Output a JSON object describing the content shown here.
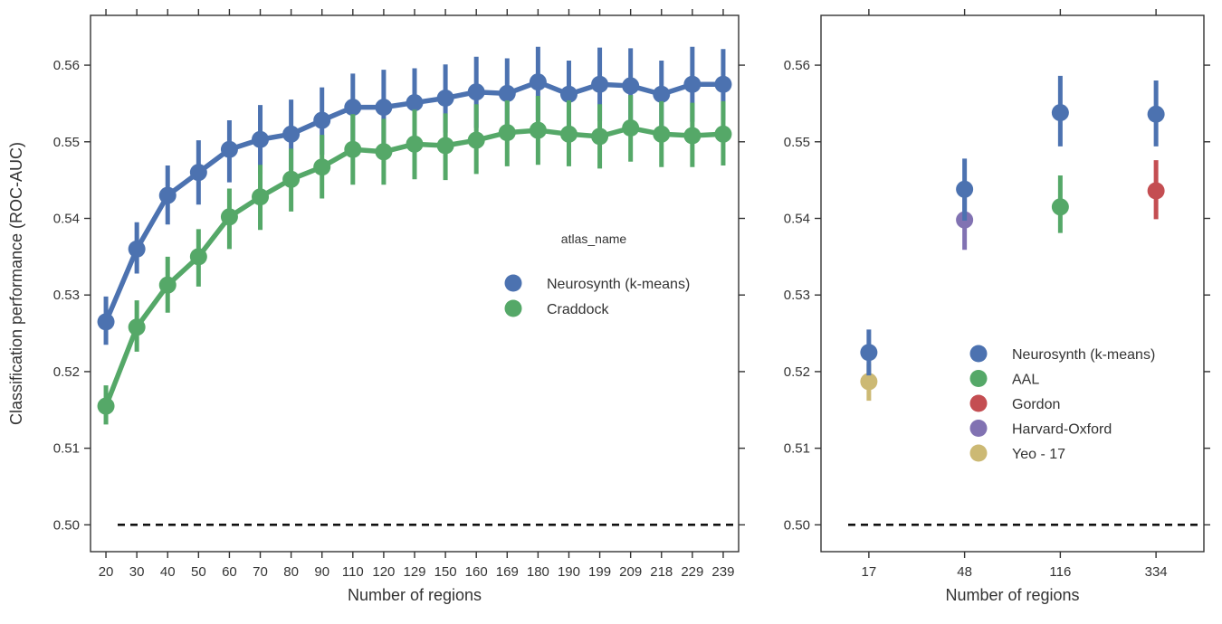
{
  "chart_data": [
    {
      "type": "line",
      "xlabel": "Number of regions",
      "ylabel": "Classification performance (ROC-AUC)",
      "ylim": [
        0.4965,
        0.5665
      ],
      "yticks": [
        "0.50",
        "0.51",
        "0.52",
        "0.53",
        "0.54",
        "0.55",
        "0.56"
      ],
      "categories": [
        "20",
        "30",
        "40",
        "50",
        "60",
        "70",
        "80",
        "90",
        "110",
        "120",
        "129",
        "150",
        "160",
        "169",
        "180",
        "190",
        "199",
        "209",
        "218",
        "229",
        "239"
      ],
      "baseline": 0.5,
      "grid": false,
      "legend": {
        "title": "atlas_name",
        "placement": "center-right"
      },
      "series": [
        {
          "name": "Neurosynth (k-means)",
          "color": "#4c72b0",
          "values": [
            0.5265,
            0.536,
            0.543,
            0.546,
            0.549,
            0.5503,
            0.551,
            0.5528,
            0.5545,
            0.5545,
            0.5551,
            0.5557,
            0.5565,
            0.5563,
            0.5578,
            0.5562,
            0.5575,
            0.5573,
            0.5562,
            0.5575,
            0.5575
          ],
          "ci_low": [
            0.5235,
            0.5328,
            0.5392,
            0.5418,
            0.5447,
            0.5458,
            0.5463,
            0.5483,
            0.5501,
            0.5496,
            0.5506,
            0.5512,
            0.5518,
            0.5516,
            0.5528,
            0.5515,
            0.5527,
            0.5524,
            0.5516,
            0.5526,
            0.5528
          ],
          "ci_high": [
            0.5298,
            0.5395,
            0.5469,
            0.5502,
            0.5528,
            0.5548,
            0.5555,
            0.5571,
            0.5589,
            0.5594,
            0.5596,
            0.5601,
            0.5611,
            0.5609,
            0.5624,
            0.5606,
            0.5623,
            0.5622,
            0.5606,
            0.5624,
            0.5621
          ]
        },
        {
          "name": "Craddock",
          "color": "#55a868",
          "values": [
            0.5155,
            0.5258,
            0.5313,
            0.535,
            0.5402,
            0.5428,
            0.5451,
            0.5467,
            0.549,
            0.5487,
            0.5497,
            0.5495,
            0.5502,
            0.5512,
            0.5515,
            0.551,
            0.5507,
            0.5518,
            0.551,
            0.5508,
            0.551
          ],
          "ci_low": [
            0.5131,
            0.5226,
            0.5277,
            0.5311,
            0.536,
            0.5385,
            0.5409,
            0.5426,
            0.5444,
            0.5444,
            0.5451,
            0.545,
            0.5458,
            0.5468,
            0.547,
            0.5468,
            0.5465,
            0.5474,
            0.5467,
            0.5467,
            0.5469
          ],
          "ci_high": [
            0.5182,
            0.5293,
            0.535,
            0.5386,
            0.5439,
            0.547,
            0.5491,
            0.5509,
            0.5536,
            0.553,
            0.5542,
            0.5537,
            0.5549,
            0.5554,
            0.556,
            0.5554,
            0.5549,
            0.5561,
            0.5553,
            0.5551,
            0.5553
          ]
        }
      ]
    },
    {
      "type": "scatter",
      "xlabel": "Number of regions",
      "ylabel": "",
      "ylim": [
        0.4965,
        0.5665
      ],
      "yticks": [
        "0.50",
        "0.51",
        "0.52",
        "0.53",
        "0.54",
        "0.55",
        "0.56"
      ],
      "categories": [
        "17",
        "48",
        "116",
        "334"
      ],
      "baseline": 0.5,
      "grid": false,
      "legend": {
        "placement": "lower-right"
      },
      "series": [
        {
          "name": "Neurosynth (k-means)",
          "color": "#4c72b0",
          "points": [
            {
              "x": "17",
              "y": 0.5225,
              "lo": 0.5195,
              "hi": 0.5255
            },
            {
              "x": "48",
              "y": 0.5438,
              "lo": 0.5397,
              "hi": 0.5478
            },
            {
              "x": "116",
              "y": 0.5538,
              "lo": 0.5494,
              "hi": 0.5586
            },
            {
              "x": "334",
              "y": 0.5536,
              "lo": 0.5494,
              "hi": 0.558
            }
          ]
        },
        {
          "name": "AAL",
          "color": "#55a868",
          "points": [
            {
              "x": "116",
              "y": 0.5415,
              "lo": 0.5381,
              "hi": 0.5456
            }
          ]
        },
        {
          "name": "Gordon",
          "color": "#c44e52",
          "points": [
            {
              "x": "334",
              "y": 0.5436,
              "lo": 0.5399,
              "hi": 0.5476
            }
          ]
        },
        {
          "name": "Harvard-Oxford",
          "color": "#8172b2",
          "points": [
            {
              "x": "48",
              "y": 0.5398,
              "lo": 0.5359,
              "hi": 0.5436
            }
          ]
        },
        {
          "name": "Yeo - 17",
          "color": "#ccb974",
          "points": [
            {
              "x": "17",
              "y": 0.5187,
              "lo": 0.5162,
              "hi": 0.521
            }
          ]
        }
      ]
    }
  ]
}
